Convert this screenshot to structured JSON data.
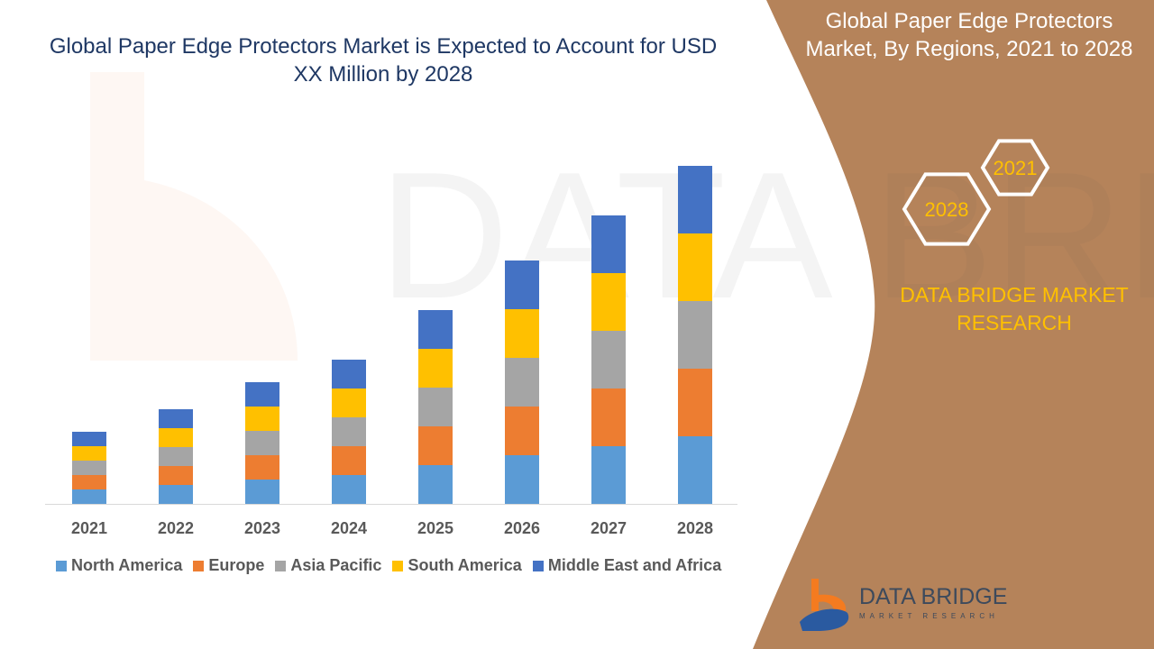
{
  "title": "Global Paper Edge Protectors Market is Expected to Account for USD XX Million by 2028",
  "side_panel": {
    "title": "Global Paper Edge Protectors Market, By Regions, 2021 to 2028",
    "hex_labels": [
      "2021",
      "2028"
    ],
    "brand": "DATA BRIDGE MARKET RESEARCH",
    "logo_text": "DATA BRIDGE",
    "logo_sub": "MARKET RESEARCH",
    "panel_color": "#b5835a"
  },
  "chart_data": {
    "type": "bar",
    "stacked": true,
    "categories": [
      "2021",
      "2022",
      "2023",
      "2024",
      "2025",
      "2026",
      "2027",
      "2028"
    ],
    "series": [
      {
        "name": "North America",
        "color": "#5b9bd5",
        "values": [
          16,
          21,
          27,
          32,
          43,
          54,
          64,
          75
        ]
      },
      {
        "name": "Europe",
        "color": "#ed7d31",
        "values": [
          16,
          21,
          27,
          32,
          43,
          54,
          64,
          75
        ]
      },
      {
        "name": "Asia Pacific",
        "color": "#a5a5a5",
        "values": [
          16,
          21,
          27,
          32,
          43,
          54,
          64,
          75
        ]
      },
      {
        "name": "South America",
        "color": "#ffc000",
        "values": [
          16,
          21,
          27,
          32,
          43,
          54,
          64,
          75
        ]
      },
      {
        "name": "Middle East and Africa",
        "color": "#4472c4",
        "values": [
          16,
          21,
          27,
          32,
          43,
          54,
          64,
          75
        ]
      }
    ],
    "legend_position": "bottom",
    "grid": false,
    "y_axis_shown": false
  }
}
